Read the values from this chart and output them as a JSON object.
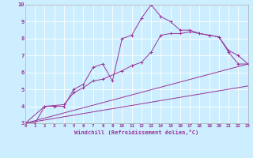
{
  "xlabel": "Windchill (Refroidissement éolien,°C)",
  "background_color": "#cceeff",
  "line_color": "#993399",
  "grid_color": "#ffffff",
  "xmin": 0,
  "xmax": 23,
  "ymin": 3,
  "ymax": 10,
  "line1_x": [
    0,
    1,
    2,
    3,
    4,
    5,
    6,
    7,
    8,
    9,
    10,
    11,
    12,
    13,
    14,
    15,
    16,
    17,
    18,
    19,
    20,
    21,
    22,
    23
  ],
  "line1_y": [
    3.0,
    3.0,
    4.0,
    4.0,
    4.0,
    5.0,
    5.3,
    6.3,
    6.5,
    5.5,
    8.0,
    8.2,
    9.2,
    10.0,
    9.3,
    9.0,
    8.5,
    8.5,
    8.3,
    8.2,
    8.1,
    7.2,
    6.5,
    6.5
  ],
  "line2_x": [
    0,
    2,
    4,
    5,
    6,
    7,
    8,
    10,
    11,
    12,
    13,
    14,
    15,
    16,
    17,
    18,
    19,
    20,
    21,
    22,
    23
  ],
  "line2_y": [
    3.0,
    4.0,
    4.1,
    4.8,
    5.1,
    5.5,
    5.6,
    6.1,
    6.4,
    6.6,
    7.2,
    8.2,
    8.3,
    8.3,
    8.4,
    8.3,
    8.2,
    8.1,
    7.3,
    7.0,
    6.5
  ],
  "line3_x": [
    0,
    23
  ],
  "line3_y": [
    3.0,
    6.5
  ],
  "line4_x": [
    0,
    23
  ],
  "line4_y": [
    3.0,
    5.2
  ],
  "yticks": [
    3,
    4,
    5,
    6,
    7,
    8,
    9,
    10
  ],
  "xticks": [
    0,
    1,
    2,
    3,
    4,
    5,
    6,
    7,
    8,
    9,
    10,
    11,
    12,
    13,
    14,
    15,
    16,
    17,
    18,
    19,
    20,
    21,
    22,
    23
  ]
}
